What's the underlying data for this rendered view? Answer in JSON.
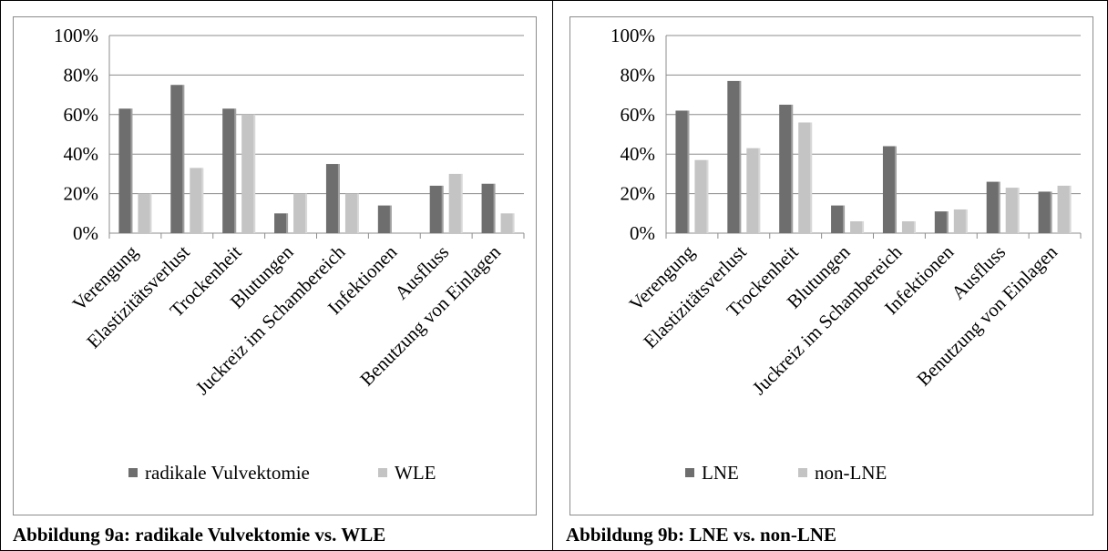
{
  "colors": {
    "dark": "#6e6e6e",
    "light": "#c4c4c4",
    "grid": "#8c8c8c"
  },
  "captions": {
    "left": "Abbildung 9a: radikale Vulvektomie vs. WLE",
    "right": "Abbildung 9b: LNE vs. non-LNE"
  },
  "chart_data": [
    {
      "type": "bar",
      "title": "",
      "xlabel": "",
      "ylabel": "",
      "ylim": [
        0,
        100
      ],
      "yticks": [
        "0%",
        "20%",
        "40%",
        "60%",
        "80%",
        "100%"
      ],
      "grid": true,
      "legend_position": "bottom",
      "categories": [
        "Verengung",
        "Elastizitätsverlust",
        "Trockenheit",
        "Blutungen",
        "Juckreiz im Schambereich",
        "Infektionen",
        "Ausfluss",
        "Benutzung von Einlagen"
      ],
      "series": [
        {
          "name": "radikale Vulvektomie",
          "color": "#6e6e6e",
          "values": [
            63,
            75,
            63,
            10,
            35,
            14,
            24,
            25
          ]
        },
        {
          "name": "WLE",
          "color": "#c4c4c4",
          "values": [
            20,
            33,
            60,
            20,
            20,
            0,
            30,
            10
          ]
        }
      ]
    },
    {
      "type": "bar",
      "title": "",
      "xlabel": "",
      "ylabel": "",
      "ylim": [
        0,
        100
      ],
      "yticks": [
        "0%",
        "20%",
        "40%",
        "60%",
        "80%",
        "100%"
      ],
      "grid": true,
      "legend_position": "bottom",
      "categories": [
        "Verengung",
        "Elastizitätsverlust",
        "Trockenheit",
        "Blutungen",
        "Juckreiz im Schambereich",
        "Infektionen",
        "Ausfluss",
        "Benutzung von Einlagen"
      ],
      "series": [
        {
          "name": "LNE",
          "color": "#6e6e6e",
          "values": [
            62,
            77,
            65,
            14,
            44,
            11,
            26,
            21
          ]
        },
        {
          "name": "non-LNE",
          "color": "#c4c4c4",
          "values": [
            37,
            43,
            56,
            6,
            6,
            12,
            23,
            24
          ]
        }
      ]
    }
  ]
}
